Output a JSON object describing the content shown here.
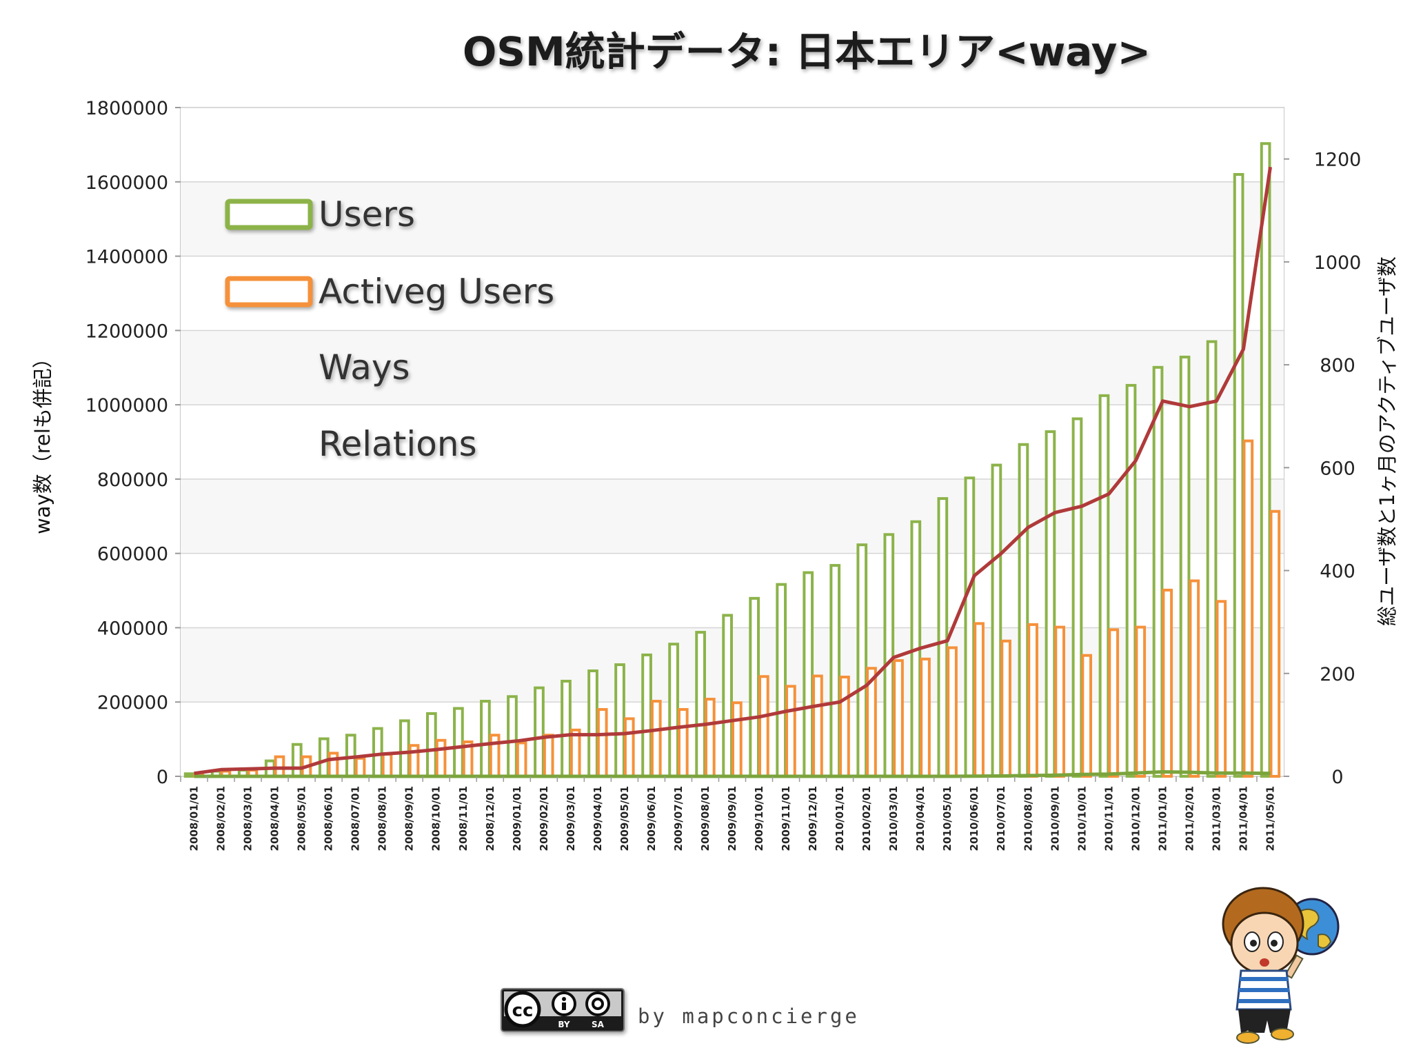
{
  "chart_data": {
    "type": "bar",
    "title": "OSM統計データ: 日本エリア<way>",
    "ylabel_left": "way数（relも併記）",
    "ylabel_right": "総ユーザ数と1ヶ月のアクティブユーザ数",
    "ylim_left": [
      0,
      1800000
    ],
    "ylim_right": [
      0,
      1300
    ],
    "yticks_left": [
      "0",
      "200000",
      "400000",
      "600000",
      "800000",
      "1000000",
      "1200000",
      "1400000",
      "1600000",
      "1800000"
    ],
    "yticks_right": [
      "0",
      "200",
      "400",
      "600",
      "800",
      "1000",
      "1200"
    ],
    "legend_position": "top-left",
    "grid": true,
    "categories": [
      "2008/01/01",
      "2008/02/01",
      "2008/03/01",
      "2008/04/01",
      "2008/05/01",
      "2008/06/01",
      "2008/07/01",
      "2008/08/01",
      "2008/09/01",
      "2008/10/01",
      "2008/11/01",
      "2008/12/01",
      "2009/01/01",
      "2009/02/01",
      "2009/03/01",
      "2009/04/01",
      "2009/05/01",
      "2009/06/01",
      "2009/07/01",
      "2009/08/01",
      "2009/09/01",
      "2009/10/01",
      "2009/11/01",
      "2009/12/01",
      "2010/01/01",
      "2010/02/01",
      "2010/03/01",
      "2010/04/01",
      "2010/05/01",
      "2010/06/01",
      "2010/07/01",
      "2010/08/01",
      "2010/09/01",
      "2010/10/01",
      "2010/11/01",
      "2010/12/01",
      "2011/01/01",
      "2011/02/01",
      "2011/03/01",
      "2011/04/01",
      "2011/05/01"
    ],
    "series": [
      {
        "name": "Users",
        "axis": "right",
        "kind": "bar",
        "color": "#8cb34a",
        "values": [
          5,
          10,
          12,
          30,
          62,
          73,
          80,
          93,
          108,
          122,
          132,
          146,
          155,
          172,
          185,
          205,
          217,
          236,
          257,
          280,
          313,
          346,
          373,
          396,
          410,
          450,
          470,
          495,
          540,
          580,
          605,
          645,
          670,
          695,
          740,
          760,
          795,
          815,
          845,
          1170,
          1230
        ]
      },
      {
        "name": "Activeg Users",
        "axis": "right",
        "kind": "bar",
        "color": "#f5913b",
        "values": [
          3,
          10,
          12,
          38,
          38,
          45,
          35,
          43,
          60,
          70,
          67,
          80,
          65,
          80,
          90,
          130,
          112,
          146,
          130,
          150,
          143,
          194,
          175,
          195,
          193,
          210,
          225,
          228,
          250,
          297,
          263,
          295,
          290,
          235,
          285,
          290,
          362,
          380,
          340,
          652,
          515
        ]
      },
      {
        "name": "Ways",
        "axis": "left",
        "kind": "line",
        "color": "#b03a3a",
        "values": [
          8000,
          18000,
          20000,
          22000,
          22000,
          45000,
          52000,
          60000,
          65000,
          72000,
          80000,
          88000,
          95000,
          105000,
          112000,
          112000,
          115000,
          123000,
          132000,
          140000,
          150000,
          160000,
          175000,
          188000,
          200000,
          245000,
          320000,
          345000,
          365000,
          540000,
          600000,
          670000,
          710000,
          727000,
          760000,
          850000,
          1010000,
          995000,
          1010000,
          1150000,
          1640000
        ]
      },
      {
        "name": "Relations",
        "axis": "left",
        "kind": "line",
        "color": "#7ba43c",
        "values": [
          0,
          0,
          0,
          0,
          0,
          0,
          0,
          0,
          0,
          0,
          0,
          0,
          0,
          0,
          0,
          0,
          0,
          0,
          0,
          0,
          0,
          0,
          0,
          0,
          0,
          0,
          0,
          0,
          0,
          500,
          1000,
          2000,
          3000,
          5000,
          6000,
          9000,
          12000,
          11000,
          9000,
          9000,
          8000
        ]
      }
    ]
  },
  "credit": "by mapconcierge",
  "license_badge": {
    "cc": "cc",
    "by": "BY",
    "sa": "SA"
  },
  "mascot_icon": "mascot-boy-with-globe"
}
